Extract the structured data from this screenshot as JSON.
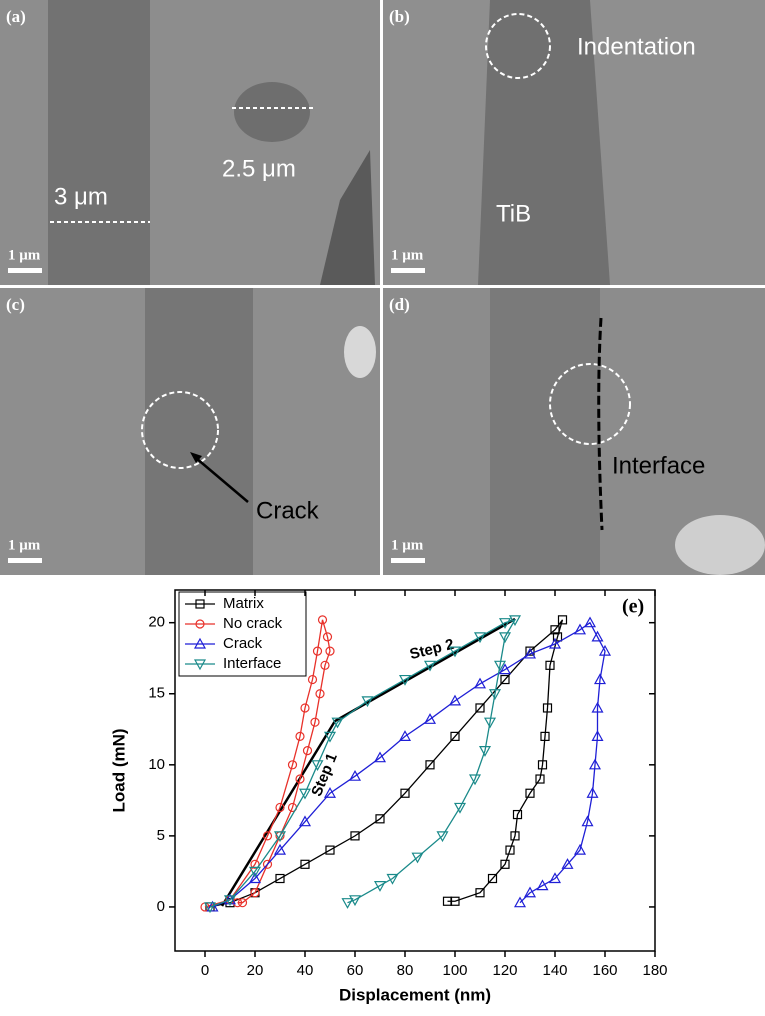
{
  "panels": [
    {
      "label": "(a)",
      "scale": "1 μm",
      "notes": [
        "3 μm",
        "2.5 μm"
      ]
    },
    {
      "label": "(b)",
      "scale": "1 μm",
      "notes": [
        "Indentation",
        "TiB"
      ]
    },
    {
      "label": "(c)",
      "scale": "1 μm",
      "notes": [
        "Crack"
      ]
    },
    {
      "label": "(d)",
      "scale": "1 μm",
      "notes": [
        "Interface"
      ]
    }
  ],
  "chart_data": {
    "type": "line",
    "panel_label": "(e)",
    "x_label": "Displacement (nm)",
    "y_label": "Load (mN)",
    "annotations": [
      "Step 1",
      "Step 2"
    ],
    "xlim": [
      -12,
      180
    ],
    "ylim": [
      -3.1,
      22.3
    ],
    "xticks": [
      0,
      20,
      40,
      60,
      80,
      100,
      120,
      140,
      160,
      180
    ],
    "yticks": [
      0,
      5,
      10,
      15,
      20
    ],
    "legend": "top-left",
    "series": [
      {
        "name": "Matrix",
        "color": "#000000",
        "marker": "square",
        "x": [
          2,
          10,
          20,
          30,
          40,
          50,
          60,
          70,
          80,
          90,
          100,
          110,
          120,
          130,
          140,
          143,
          141,
          138,
          137,
          136,
          135,
          134,
          130,
          125,
          124,
          122,
          120,
          115,
          110,
          100,
          97
        ],
        "values": [
          0,
          0.3,
          1,
          2,
          3,
          4,
          5,
          6.2,
          8,
          10,
          12,
          14,
          16,
          18,
          19.5,
          20.2,
          19,
          17,
          14,
          12,
          10,
          9,
          8,
          6.5,
          5,
          4,
          3,
          2,
          1,
          0.4,
          0.4
        ]
      },
      {
        "name": "No crack",
        "color": "#e8312a",
        "marker": "circle",
        "x": [
          0,
          10,
          20,
          25,
          30,
          35,
          38,
          40,
          43,
          45,
          47,
          49,
          50,
          48,
          46,
          44,
          41,
          38,
          35,
          30,
          25,
          20,
          15,
          13
        ],
        "values": [
          0,
          0.5,
          3,
          5,
          7,
          10,
          12,
          14,
          16,
          18,
          20.2,
          19,
          18,
          17,
          15,
          13,
          11,
          9,
          7,
          5,
          3,
          1,
          0.3,
          0.3
        ]
      },
      {
        "name": "Crack",
        "color": "#1f1fd6",
        "marker": "triangle-up",
        "x": [
          3,
          10,
          20,
          30,
          40,
          50,
          60,
          70,
          80,
          90,
          100,
          110,
          120,
          130,
          140,
          150,
          154,
          157,
          160,
          158,
          157,
          157,
          156,
          155,
          153,
          150,
          145,
          140,
          135,
          130,
          126
        ],
        "values": [
          0,
          0.5,
          2,
          4,
          6,
          8,
          9.2,
          10.5,
          12,
          13.2,
          14.5,
          15.7,
          16.7,
          17.8,
          18.5,
          19.5,
          20,
          19,
          18,
          16,
          14,
          12,
          10,
          8,
          6,
          4,
          3,
          2,
          1.5,
          1,
          0.3
        ]
      },
      {
        "name": "Interface",
        "color": "#1a8a8a",
        "marker": "triangle-down",
        "x": [
          2,
          10,
          20,
          30,
          40,
          45,
          50,
          53,
          65,
          80,
          90,
          100,
          110,
          120,
          124,
          120,
          118,
          116,
          114,
          112,
          108,
          102,
          95,
          85,
          75,
          70,
          60,
          57
        ],
        "values": [
          0,
          0.5,
          2.5,
          5,
          8,
          10,
          12,
          13,
          14.5,
          16,
          17,
          18,
          19,
          20,
          20.2,
          19,
          17,
          15,
          13,
          11,
          9,
          7,
          5,
          3.5,
          2,
          1.5,
          0.5,
          0.3
        ]
      }
    ]
  }
}
